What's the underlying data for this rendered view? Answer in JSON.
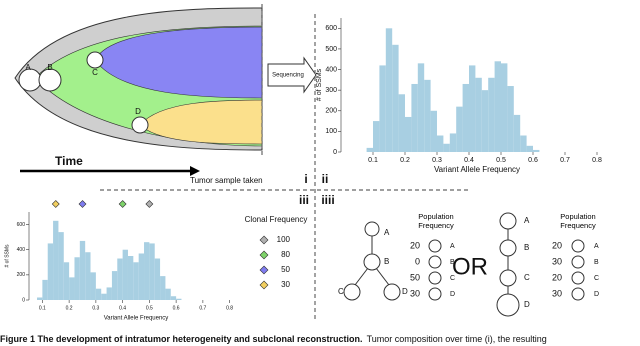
{
  "panel_labels": [
    "i",
    "ii",
    "iii",
    "iiii"
  ],
  "panel_i": {
    "clones": [
      "A",
      "B",
      "C",
      "D"
    ],
    "time_label": "Time",
    "sample_label": "Tumor sample taken",
    "sequencing_label": "Sequencing"
  },
  "chart_data": [
    {
      "type": "histogram",
      "xlabel": "Variant Allele Frequency",
      "ylabel": "# of SSMs",
      "color": "#a8cfe2",
      "bins": [
        0.08,
        0.1,
        0.12,
        0.14,
        0.16,
        0.18,
        0.2,
        0.22,
        0.24,
        0.26,
        0.28,
        0.3,
        0.32,
        0.34,
        0.36,
        0.38,
        0.4,
        0.42,
        0.44,
        0.46,
        0.48,
        0.5,
        0.52,
        0.54,
        0.56,
        0.58,
        0.6,
        0.62
      ],
      "counts": [
        20,
        150,
        420,
        600,
        520,
        280,
        170,
        330,
        430,
        350,
        200,
        80,
        40,
        90,
        220,
        330,
        420,
        360,
        300,
        360,
        440,
        430,
        320,
        180,
        80,
        30,
        10
      ],
      "xlim": [
        0,
        0.85
      ],
      "ylim": [
        0,
        650
      ],
      "xticks": [
        0.1,
        0.2,
        0.3,
        0.4,
        0.5,
        0.6,
        0.7,
        0.8
      ],
      "yticks": [
        0,
        100,
        200,
        300,
        400,
        500,
        600
      ]
    },
    {
      "type": "histogram",
      "xlabel": "Variant Allele Frequency",
      "ylabel": "# of SSMs",
      "color": "#a8cfe2",
      "bins": [
        0.08,
        0.1,
        0.12,
        0.14,
        0.16,
        0.18,
        0.2,
        0.22,
        0.24,
        0.26,
        0.28,
        0.3,
        0.32,
        0.34,
        0.36,
        0.38,
        0.4,
        0.42,
        0.44,
        0.46,
        0.48,
        0.5,
        0.52,
        0.54,
        0.56,
        0.58,
        0.6,
        0.62
      ],
      "counts": [
        20,
        160,
        450,
        630,
        540,
        300,
        180,
        340,
        470,
        380,
        220,
        90,
        50,
        100,
        230,
        330,
        400,
        350,
        300,
        370,
        460,
        450,
        330,
        190,
        90,
        30,
        10
      ],
      "xlim": [
        0.05,
        0.85
      ],
      "ylim": [
        0,
        700
      ],
      "xticks": [
        0.1,
        0.2,
        0.3,
        0.4,
        0.5,
        0.6,
        0.7,
        0.8
      ],
      "yticks": [
        0,
        200,
        400,
        600
      ],
      "legend_title": "Clonal Frequency",
      "markers": [
        {
          "name": "100",
          "color": "#b0b0b0",
          "x": 0.5
        },
        {
          "name": "80",
          "color": "#7ed36a",
          "x": 0.4
        },
        {
          "name": "50",
          "color": "#7f7cf0",
          "x": 0.25
        },
        {
          "name": "30",
          "color": "#f2cf60",
          "x": 0.15
        }
      ]
    }
  ],
  "panel_iv": {
    "or_label": "OR",
    "models": [
      {
        "title": "Population Frequency",
        "rows": [
          {
            "frequency": 20,
            "clone": "A"
          },
          {
            "frequency": 0,
            "clone": "B"
          },
          {
            "frequency": 50,
            "clone": "C"
          },
          {
            "frequency": 30,
            "clone": "D"
          }
        ]
      },
      {
        "title": "Population Frequency",
        "rows": [
          {
            "frequency": 20,
            "clone": "A"
          },
          {
            "frequency": 30,
            "clone": "B"
          },
          {
            "frequency": 20,
            "clone": "C"
          },
          {
            "frequency": 30,
            "clone": "D"
          }
        ]
      }
    ]
  },
  "caption": {
    "title": "Figure 1 The development of intratumor heterogeneity and subclonal reconstruction.",
    "text": "Tumor composition over time (i), the resulting"
  }
}
